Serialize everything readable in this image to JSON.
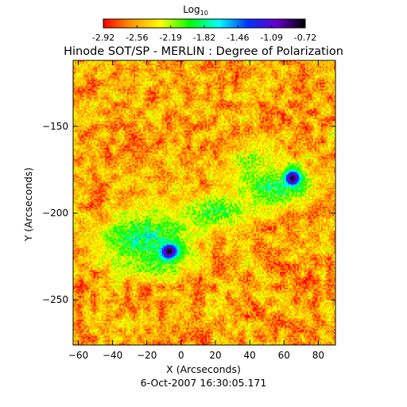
{
  "chart_data": {
    "type": "heatmap",
    "title": "Hinode SOT/SP - MERLIN : Degree of Polarization",
    "xlabel": "X (Arcseconds)",
    "ylabel": "Y (Arcseconds)",
    "date_label": "6-Oct-2007 16:30:05.171",
    "colorbar": {
      "label_main": "Log",
      "label_sub": "10",
      "ticks": [
        "-2.92",
        "-2.56",
        "-2.19",
        "-1.82",
        "-1.46",
        "-1.09",
        "-0.72"
      ],
      "range": [
        -2.92,
        -0.72
      ],
      "colors": [
        "#ff0000",
        "#ff9900",
        "#ffff00",
        "#00ff00",
        "#00ffff",
        "#0033ff",
        "#6600cc",
        "#000000"
      ]
    },
    "xlim": [
      -63,
      90
    ],
    "ylim": [
      -276,
      -112
    ],
    "xticks": [
      -60,
      -40,
      -20,
      0,
      20,
      40,
      60,
      80
    ],
    "yticks": [
      -250,
      -200,
      -150
    ],
    "background_level": -2.55,
    "features": [
      {
        "name": "sunspot",
        "x": -7,
        "y": -222,
        "peak": -0.75,
        "rx": 7,
        "ry": 6
      },
      {
        "name": "sunspot",
        "x": 65,
        "y": -180,
        "peak": -0.78,
        "rx": 6,
        "ry": 6
      },
      {
        "name": "plage",
        "x": -20,
        "y": -215,
        "peak": -1.8,
        "rx": 28,
        "ry": 16
      },
      {
        "name": "plage",
        "x": 55,
        "y": -185,
        "peak": -1.9,
        "rx": 26,
        "ry": 12
      },
      {
        "name": "network",
        "x": 20,
        "y": -198,
        "peak": -2.0,
        "rx": 24,
        "ry": 10
      },
      {
        "name": "network",
        "x": -15,
        "y": -230,
        "peak": -2.05,
        "rx": 20,
        "ry": 8
      },
      {
        "name": "network",
        "x": 40,
        "y": -170,
        "peak": -2.2,
        "rx": 15,
        "ry": 10
      }
    ]
  }
}
